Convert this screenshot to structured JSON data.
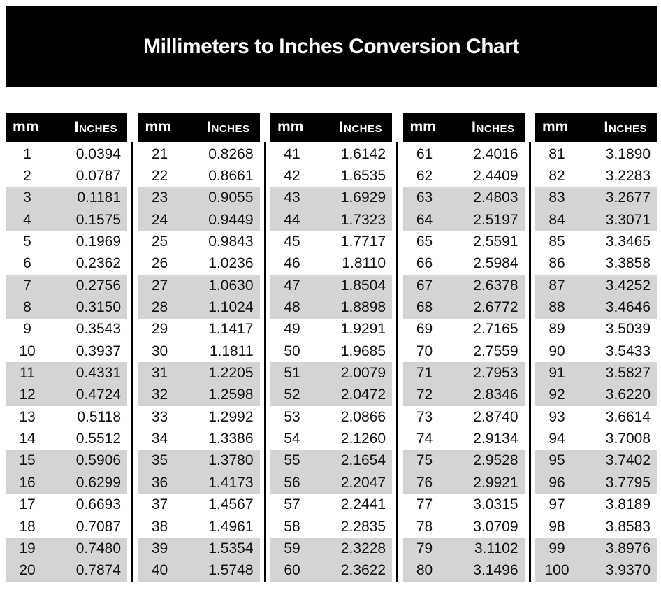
{
  "chart_data": {
    "type": "table",
    "title": "Millimeters to Inches Conversion Chart",
    "columns": [
      "mm",
      "Inches"
    ],
    "groups": [
      {
        "rows": [
          [
            "1",
            "0.0394"
          ],
          [
            "2",
            "0.0787"
          ],
          [
            "3",
            "0.1181"
          ],
          [
            "4",
            "0.1575"
          ],
          [
            "5",
            "0.1969"
          ],
          [
            "6",
            "0.2362"
          ],
          [
            "7",
            "0.2756"
          ],
          [
            "8",
            "0.3150"
          ],
          [
            "9",
            "0.3543"
          ],
          [
            "10",
            "0.3937"
          ],
          [
            "11",
            "0.4331"
          ],
          [
            "12",
            "0.4724"
          ],
          [
            "13",
            "0.5118"
          ],
          [
            "14",
            "0.5512"
          ],
          [
            "15",
            "0.5906"
          ],
          [
            "16",
            "0.6299"
          ],
          [
            "17",
            "0.6693"
          ],
          [
            "18",
            "0.7087"
          ],
          [
            "19",
            "0.7480"
          ],
          [
            "20",
            "0.7874"
          ]
        ]
      },
      {
        "rows": [
          [
            "21",
            "0.8268"
          ],
          [
            "22",
            "0.8661"
          ],
          [
            "23",
            "0.9055"
          ],
          [
            "24",
            "0.9449"
          ],
          [
            "25",
            "0.9843"
          ],
          [
            "26",
            "1.0236"
          ],
          [
            "27",
            "1.0630"
          ],
          [
            "28",
            "1.1024"
          ],
          [
            "29",
            "1.1417"
          ],
          [
            "30",
            "1.1811"
          ],
          [
            "31",
            "1.2205"
          ],
          [
            "32",
            "1.2598"
          ],
          [
            "33",
            "1.2992"
          ],
          [
            "34",
            "1.3386"
          ],
          [
            "35",
            "1.3780"
          ],
          [
            "36",
            "1.4173"
          ],
          [
            "37",
            "1.4567"
          ],
          [
            "38",
            "1.4961"
          ],
          [
            "39",
            "1.5354"
          ],
          [
            "40",
            "1.5748"
          ]
        ]
      },
      {
        "rows": [
          [
            "41",
            "1.6142"
          ],
          [
            "42",
            "1.6535"
          ],
          [
            "43",
            "1.6929"
          ],
          [
            "44",
            "1.7323"
          ],
          [
            "45",
            "1.7717"
          ],
          [
            "46",
            "1.8110"
          ],
          [
            "47",
            "1.8504"
          ],
          [
            "48",
            "1.8898"
          ],
          [
            "49",
            "1.9291"
          ],
          [
            "50",
            "1.9685"
          ],
          [
            "51",
            "2.0079"
          ],
          [
            "52",
            "2.0472"
          ],
          [
            "53",
            "2.0866"
          ],
          [
            "54",
            "2.1260"
          ],
          [
            "55",
            "2.1654"
          ],
          [
            "56",
            "2.2047"
          ],
          [
            "57",
            "2.2441"
          ],
          [
            "58",
            "2.2835"
          ],
          [
            "59",
            "2.3228"
          ],
          [
            "60",
            "2.3622"
          ]
        ]
      },
      {
        "rows": [
          [
            "61",
            "2.4016"
          ],
          [
            "62",
            "2.4409"
          ],
          [
            "63",
            "2.4803"
          ],
          [
            "64",
            "2.5197"
          ],
          [
            "65",
            "2.5591"
          ],
          [
            "66",
            "2.5984"
          ],
          [
            "67",
            "2.6378"
          ],
          [
            "68",
            "2.6772"
          ],
          [
            "69",
            "2.7165"
          ],
          [
            "70",
            "2.7559"
          ],
          [
            "71",
            "2.7953"
          ],
          [
            "72",
            "2.8346"
          ],
          [
            "73",
            "2.8740"
          ],
          [
            "74",
            "2.9134"
          ],
          [
            "75",
            "2.9528"
          ],
          [
            "76",
            "2.9921"
          ],
          [
            "77",
            "3.0315"
          ],
          [
            "78",
            "3.0709"
          ],
          [
            "79",
            "3.1102"
          ],
          [
            "80",
            "3.1496"
          ]
        ]
      },
      {
        "rows": [
          [
            "81",
            "3.1890"
          ],
          [
            "82",
            "3.2283"
          ],
          [
            "83",
            "3.2677"
          ],
          [
            "84",
            "3.3071"
          ],
          [
            "85",
            "3.3465"
          ],
          [
            "86",
            "3.3858"
          ],
          [
            "87",
            "3.4252"
          ],
          [
            "88",
            "3.4646"
          ],
          [
            "89",
            "3.5039"
          ],
          [
            "90",
            "3.5433"
          ],
          [
            "91",
            "3.5827"
          ],
          [
            "92",
            "3.6220"
          ],
          [
            "93",
            "3.6614"
          ],
          [
            "94",
            "3.7008"
          ],
          [
            "95",
            "3.7402"
          ],
          [
            "96",
            "3.7795"
          ],
          [
            "97",
            "3.8189"
          ],
          [
            "98",
            "3.8583"
          ],
          [
            "99",
            "3.8976"
          ],
          [
            "100",
            "3.9370"
          ]
        ]
      }
    ],
    "layout": {
      "stripe_pattern": "alternating pairs of rows shaded",
      "column_groups": 5,
      "rows_per_group": 20
    }
  },
  "colors": {
    "page_bg": "#ffffff",
    "banner_bg": "#000000",
    "banner_text": "#ffffff",
    "header_bg": "#000000",
    "header_text": "#ffffff",
    "row_stripe": "#d4d4d4",
    "divider": "#000000",
    "text": "#111111"
  }
}
